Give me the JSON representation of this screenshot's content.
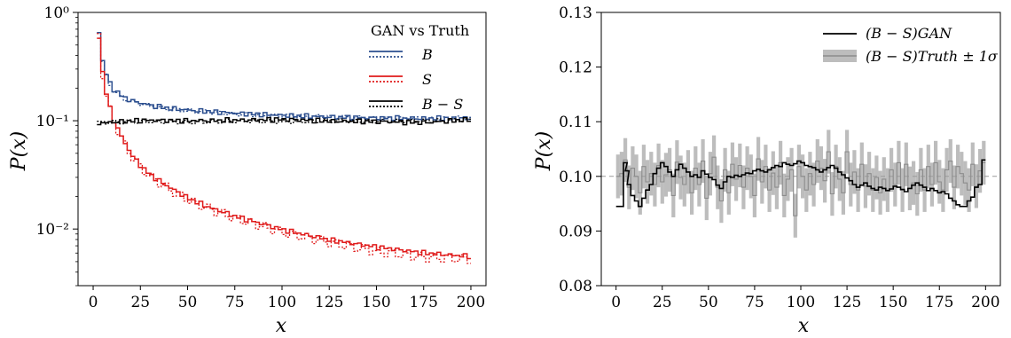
{
  "chart_data": [
    {
      "type": "line",
      "subtype": "step-histogram",
      "xlabel": "x",
      "ylabel": "P(x)",
      "xlim": [
        -8,
        208
      ],
      "ylim": [
        0.003,
        1.0
      ],
      "yscale": "log",
      "xticks": [
        0,
        25,
        50,
        75,
        100,
        125,
        150,
        175,
        200
      ],
      "xtick_labels": [
        "0",
        "25",
        "50",
        "75",
        "100",
        "125",
        "150",
        "175",
        "200"
      ],
      "yticks": [
        0.01,
        0.1,
        1.0
      ],
      "ytick_labels": [
        "10⁻²",
        "10⁻¹",
        "10⁰"
      ],
      "grid": false,
      "legend": {
        "title": "GAN vs Truth",
        "placement": "top-right",
        "entries": [
          "B",
          "S",
          "B − S"
        ]
      },
      "colors": {
        "B": "#2c4f8f",
        "S": "#e01b1b",
        "B-S": "#000000"
      },
      "series": [
        {
          "name": "B",
          "style": "solid (GAN) / dotted (Truth)",
          "x": [
            2,
            4,
            6,
            8,
            10,
            15,
            20,
            25,
            30,
            40,
            50,
            75,
            100,
            125,
            150,
            175,
            200
          ],
          "gan": [
            0.66,
            0.36,
            0.27,
            0.22,
            0.195,
            0.165,
            0.152,
            0.145,
            0.138,
            0.13,
            0.125,
            0.117,
            0.112,
            0.108,
            0.106,
            0.105,
            0.106
          ],
          "truth": [
            0.67,
            0.35,
            0.26,
            0.215,
            0.19,
            0.16,
            0.149,
            0.143,
            0.136,
            0.128,
            0.124,
            0.115,
            0.111,
            0.109,
            0.105,
            0.104,
            0.107
          ]
        },
        {
          "name": "S",
          "style": "solid (GAN) / dotted (Truth)",
          "x": [
            2,
            4,
            6,
            8,
            10,
            15,
            20,
            25,
            30,
            40,
            50,
            60,
            75,
            100,
            125,
            150,
            175,
            198,
            200
          ],
          "gan": [
            0.6,
            0.28,
            0.18,
            0.13,
            0.1,
            0.066,
            0.047,
            0.037,
            0.031,
            0.024,
            0.019,
            0.016,
            0.013,
            0.0098,
            0.0079,
            0.0068,
            0.006,
            0.0056,
            0.0047
          ],
          "truth": [
            0.62,
            0.27,
            0.17,
            0.125,
            0.097,
            0.064,
            0.046,
            0.036,
            0.03,
            0.023,
            0.0185,
            0.0155,
            0.0125,
            0.0093,
            0.0075,
            0.0062,
            0.0055,
            0.0053,
            0.0049
          ]
        },
        {
          "name": "B − S",
          "style": "solid (GAN) / dotted (Truth)",
          "x": [
            2,
            25,
            50,
            75,
            100,
            125,
            150,
            175,
            200
          ],
          "gan": [
            0.095,
            0.101,
            0.1,
            0.101,
            0.103,
            0.099,
            0.098,
            0.096,
            0.103
          ],
          "truth": [
            0.096,
            0.099,
            0.097,
            0.1,
            0.098,
            0.1,
            0.099,
            0.1,
            0.101
          ]
        }
      ]
    },
    {
      "type": "line",
      "subtype": "step-histogram-with-band",
      "xlabel": "x",
      "ylabel": "P(x)",
      "xlim": [
        -8,
        208
      ],
      "ylim": [
        0.08,
        0.13
      ],
      "yscale": "linear",
      "xticks": [
        0,
        25,
        50,
        75,
        100,
        125,
        150,
        175,
        200
      ],
      "xtick_labels": [
        "0",
        "25",
        "50",
        "75",
        "100",
        "125",
        "150",
        "175",
        "200"
      ],
      "yticks": [
        0.08,
        0.09,
        0.1,
        0.11,
        0.12,
        0.13
      ],
      "ytick_labels": [
        "0.08",
        "0.09",
        "0.10",
        "0.11",
        "0.12",
        "0.13"
      ],
      "grid": false,
      "reference_line": 0.1,
      "legend": {
        "placement": "top-right",
        "entries": [
          "(B − S)GAN",
          "(B − S)Truth ± 1σ"
        ]
      },
      "colors": {
        "gan": "#000000",
        "truth_band": "#bdbdbd",
        "truth_line": "#8c8c8c",
        "reference": "#9a9a9a"
      },
      "series": [
        {
          "name": "(B − S)GAN",
          "x": [
            0,
            2,
            4,
            5,
            6,
            8,
            10,
            12,
            14,
            16,
            18,
            20,
            22,
            24,
            26,
            28,
            30,
            32,
            34,
            36,
            38,
            40,
            42,
            44,
            46,
            48,
            50,
            52,
            54,
            56,
            58,
            60,
            62,
            64,
            66,
            68,
            70,
            72,
            74,
            76,
            78,
            80,
            82,
            84,
            86,
            88,
            90,
            92,
            94,
            96,
            98,
            100,
            102,
            104,
            106,
            108,
            110,
            112,
            114,
            116,
            118,
            120,
            122,
            124,
            126,
            128,
            130,
            132,
            134,
            136,
            138,
            140,
            142,
            144,
            146,
            148,
            150,
            152,
            154,
            156,
            158,
            160,
            162,
            164,
            166,
            168,
            170,
            172,
            174,
            176,
            178,
            180,
            182,
            184,
            186,
            188,
            190,
            192,
            194,
            196,
            198
          ],
          "values": [
            0.0945,
            0.0945,
            0.1025,
            0.101,
            0.0985,
            0.0965,
            0.0955,
            0.0945,
            0.096,
            0.0975,
            0.0985,
            0.1005,
            0.1015,
            0.1025,
            0.1018,
            0.1008,
            0.1,
            0.1012,
            0.1022,
            0.1015,
            0.1008,
            0.1,
            0.1003,
            0.0998,
            0.101,
            0.1004,
            0.0998,
            0.0994,
            0.0984,
            0.0978,
            0.099,
            0.1,
            0.0998,
            0.1002,
            0.1,
            0.1003,
            0.1006,
            0.1005,
            0.101,
            0.1013,
            0.101,
            0.1008,
            0.1012,
            0.1016,
            0.102,
            0.1018,
            0.1025,
            0.1022,
            0.102,
            0.1023,
            0.1028,
            0.1025,
            0.102,
            0.1018,
            0.1016,
            0.1012,
            0.1008,
            0.1012,
            0.1016,
            0.102,
            0.1015,
            0.1008,
            0.1003,
            0.0997,
            0.0992,
            0.0985,
            0.098,
            0.0984,
            0.0988,
            0.0982,
            0.0978,
            0.0975,
            0.098,
            0.0978,
            0.0974,
            0.0977,
            0.0982,
            0.098,
            0.0976,
            0.0972,
            0.0978,
            0.0984,
            0.0988,
            0.0984,
            0.098,
            0.0974,
            0.0978,
            0.0974,
            0.097,
            0.0972,
            0.0968,
            0.096,
            0.0955,
            0.0948,
            0.0945,
            0.0945,
            0.0955,
            0.0962,
            0.098,
            0.0985,
            0.103
          ]
        },
        {
          "name": "(B − S)Truth ± 1σ",
          "x": [
            0,
            2,
            4,
            6,
            8,
            10,
            12,
            14,
            16,
            18,
            20,
            22,
            24,
            26,
            28,
            30,
            32,
            34,
            36,
            38,
            40,
            42,
            44,
            46,
            48,
            50,
            52,
            54,
            56,
            58,
            60,
            62,
            64,
            66,
            68,
            70,
            72,
            74,
            76,
            78,
            80,
            82,
            84,
            86,
            88,
            90,
            92,
            94,
            96,
            98,
            100,
            102,
            104,
            106,
            108,
            110,
            112,
            114,
            116,
            118,
            120,
            122,
            124,
            126,
            128,
            130,
            132,
            134,
            136,
            138,
            140,
            142,
            144,
            146,
            148,
            150,
            152,
            154,
            156,
            158,
            160,
            162,
            164,
            166,
            168,
            170,
            172,
            174,
            176,
            178,
            180,
            182,
            184,
            186,
            188,
            190,
            192,
            194,
            196,
            198
          ],
          "values": [
            0.1,
            0.1005,
            0.103,
            0.098,
            0.1015,
            0.1,
            0.097,
            0.1018,
            0.099,
            0.1005,
            0.0985,
            0.102,
            0.099,
            0.1003,
            0.1012,
            0.0965,
            0.1026,
            0.0998,
            0.0985,
            0.1008,
            0.097,
            0.1015,
            0.0985,
            0.1028,
            0.096,
            0.1005,
            0.1035,
            0.098,
            0.0955,
            0.1012,
            0.097,
            0.1022,
            0.0995,
            0.102,
            0.098,
            0.1015,
            0.1,
            0.0965,
            0.1032,
            0.099,
            0.1018,
            0.0975,
            0.1006,
            0.098,
            0.1025,
            0.0965,
            0.0995,
            0.1012,
            0.0928,
            0.1018,
            0.1,
            0.0975,
            0.1005,
            0.0985,
            0.1028,
            0.1015,
            0.0992,
            0.1045,
            0.0968,
            0.1018,
            0.0995,
            0.097,
            0.1045,
            0.0985,
            0.1008,
            0.0975,
            0.1022,
            0.0982,
            0.1005,
            0.0975,
            0.0998,
            0.097,
            0.0995,
            0.0975,
            0.1012,
            0.0985,
            0.1025,
            0.0975,
            0.1022,
            0.0978,
            0.0988,
            0.0968,
            0.1012,
            0.0975,
            0.1018,
            0.0985,
            0.1025,
            0.099,
            0.0975,
            0.1012,
            0.1028,
            0.098,
            0.1018,
            0.1005,
            0.0988,
            0.0975,
            0.1022,
            0.0982,
            0.101,
            0.1025
          ],
          "sigma": 0.004
        }
      ]
    }
  ]
}
